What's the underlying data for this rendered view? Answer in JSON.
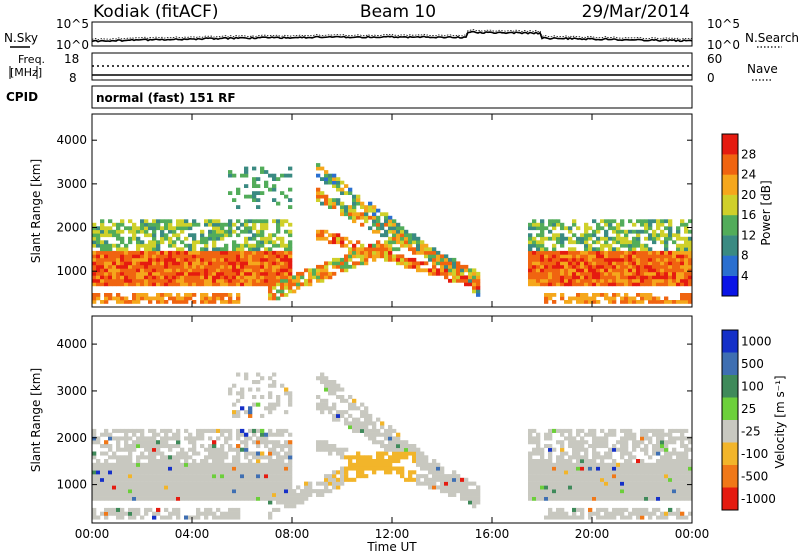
{
  "header": {
    "station": "Kodiak (fitACF)",
    "beam": "Beam 10",
    "date": "29/Mar/2014"
  },
  "top_panel": {
    "left_label": "N.Sky",
    "right_label": "N.Search",
    "left_ticks": [
      "10^5",
      "10^0"
    ],
    "right_ticks": [
      "10^5",
      "10^0"
    ]
  },
  "freq_panel": {
    "left_label_1": "Freq.",
    "left_label_2": "[MHz]",
    "right_label": "Nave",
    "left_ticks": [
      "18",
      "8"
    ],
    "right_ticks": [
      "60",
      "0"
    ]
  },
  "cpid": {
    "label": "CPID",
    "value": "normal (fast) 151 RF"
  },
  "colors": {
    "power_scale": [
      "#0a14e6",
      "#2a6fd0",
      "#3a8a82",
      "#52ac5a",
      "#cfd02a",
      "#f5a71c",
      "#f06410",
      "#e51b10"
    ],
    "velocity_scale": [
      "#1530c8",
      "#3f6fb2",
      "#3f8a5a",
      "#6ccf3a",
      "#c8c8c0",
      "#f2b52a",
      "#f07818",
      "#e51b10"
    ]
  },
  "chart_data": [
    {
      "type": "heatmap",
      "name": "power-panel",
      "x": [
        0,
        4,
        8,
        12,
        16,
        20,
        24
      ],
      "x_tick_labels": [
        "00:00",
        "04:00",
        "08:00",
        "12:00",
        "16:00",
        "20:00",
        "00:00"
      ],
      "xlim": [
        0,
        24
      ],
      "ylabel": "Slant Range [km]",
      "ylim": [
        180,
        4600
      ],
      "y_ticks": [
        1000,
        2000,
        3000,
        4000
      ],
      "colorbar": {
        "label": "Power [dB]",
        "ticks": [
          4,
          8,
          12,
          16,
          20,
          24,
          28
        ],
        "range": [
          0,
          32
        ]
      }
    },
    {
      "type": "heatmap",
      "name": "velocity-panel",
      "x": [
        0,
        4,
        8,
        12,
        16,
        20,
        24
      ],
      "x_tick_labels": [
        "00:00",
        "04:00",
        "08:00",
        "12:00",
        "16:00",
        "20:00",
        "00:00"
      ],
      "xlim": [
        0,
        24
      ],
      "xlabel": "Time UT",
      "ylabel": "Slant Range [km]",
      "ylim": [
        180,
        4600
      ],
      "y_ticks": [
        1000,
        2000,
        3000,
        4000
      ],
      "colorbar": {
        "label": "Velocity [m s⁻¹]",
        "ticks": [
          1000,
          500,
          100,
          25,
          -25,
          -100,
          -500,
          -1000
        ]
      }
    }
  ]
}
